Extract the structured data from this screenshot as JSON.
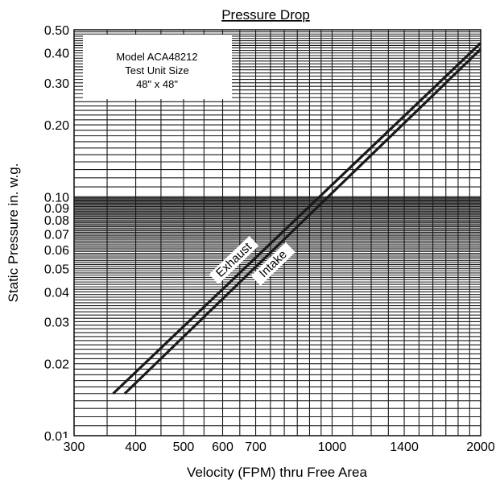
{
  "chart_data": {
    "type": "line",
    "title": "Pressure Drop",
    "xlabel": "Velocity (FPM) thru Free Area",
    "ylabel": "Static Pressure in. w.g.",
    "xscale": "log",
    "yscale": "log",
    "xlim": [
      300,
      2000
    ],
    "ylim": [
      0.01,
      0.5
    ],
    "grid": true,
    "x_ticks": [
      300,
      400,
      500,
      600,
      700,
      1000,
      1400,
      2000
    ],
    "x_tick_labels": [
      "300",
      "400",
      "500",
      "600",
      "700",
      "1000",
      "1400",
      "2000"
    ],
    "y_ticks": [
      0.01,
      0.02,
      0.03,
      0.04,
      0.05,
      0.06,
      0.07,
      0.08,
      0.09,
      0.1,
      0.2,
      0.3,
      0.4,
      0.5
    ],
    "y_tick_labels": [
      "0.01",
      "0.02",
      "0.03",
      "0.04",
      "0.05",
      "0.06",
      "0.07",
      "0.08",
      "0.09",
      "0.10",
      "0.20",
      "0.30",
      "0.40",
      "0.50"
    ],
    "series": [
      {
        "name": "Exhaust",
        "x": [
          360,
          2000
        ],
        "y": [
          0.015,
          0.44
        ]
      },
      {
        "name": "Intake",
        "x": [
          380,
          2000
        ],
        "y": [
          0.015,
          0.415
        ]
      }
    ],
    "annotation": {
      "lines": [
        "Model ACA48212",
        "Test Unit Size",
        "48\" x 48\""
      ]
    },
    "colors": {
      "line": "#1a1a1a",
      "grid": "#1a1a1a",
      "background": "#ffffff"
    }
  }
}
